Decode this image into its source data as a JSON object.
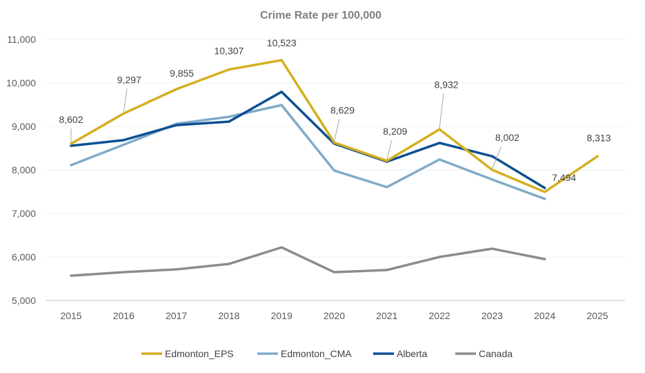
{
  "chart_data": {
    "type": "line",
    "title": "Crime Rate per 100,000",
    "xlabel": "",
    "ylabel": "",
    "ylim": [
      5000,
      11000
    ],
    "yticks": [
      "5,000",
      "6,000",
      "7,000",
      "8,000",
      "9,000",
      "10,000",
      "11,000"
    ],
    "ytick_values": [
      5000,
      6000,
      7000,
      8000,
      9000,
      10000,
      11000
    ],
    "categories": [
      "2015",
      "2016",
      "2017",
      "2018",
      "2019",
      "2020",
      "2021",
      "2022",
      "2023",
      "2024",
      "2025"
    ],
    "grid": true,
    "legend": "bottom",
    "series": [
      {
        "name": "Edmonton_EPS",
        "color": "#D4AF1E",
        "values": [
          8602,
          9297,
          9855,
          10307,
          10523,
          8629,
          8209,
          8932,
          8002,
          7494,
          8313
        ],
        "labels": [
          "8,602",
          "9,297",
          "9,855",
          "10,307",
          "10,523",
          "8,629",
          "8,209",
          "8,932",
          "8,002",
          "7,494",
          "8,313"
        ]
      },
      {
        "name": "Edmonton_CMA",
        "color": "#7FABC9",
        "values": [
          8110,
          8580,
          9060,
          9220,
          9490,
          7985,
          7605,
          8240,
          7780,
          7335,
          null
        ]
      },
      {
        "name": "Alberta",
        "color": "#0B4F93",
        "values": [
          8555,
          8685,
          9030,
          9110,
          9795,
          8605,
          8190,
          8620,
          8315,
          7585,
          null
        ]
      },
      {
        "name": "Canada",
        "color": "#8C8C8C",
        "values": [
          5570,
          5650,
          5715,
          5840,
          6220,
          5650,
          5700,
          6000,
          6190,
          5950,
          null
        ]
      }
    ]
  }
}
